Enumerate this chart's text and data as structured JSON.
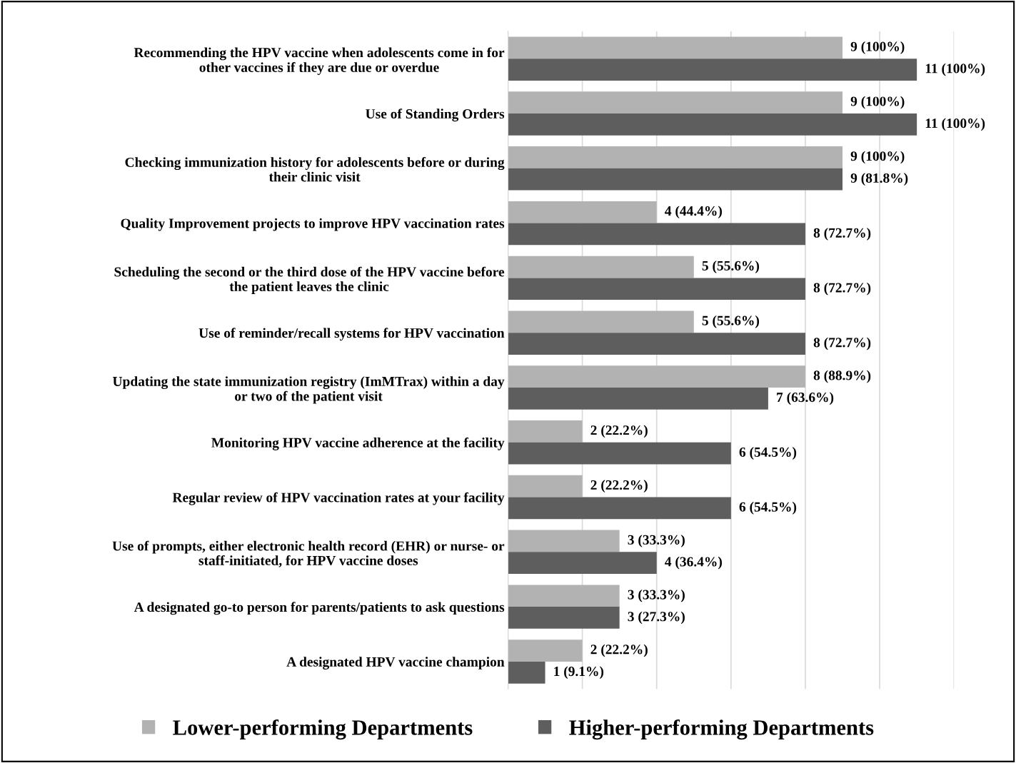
{
  "chart_data": {
    "type": "bar",
    "orientation": "horizontal",
    "categories": [
      "Recommending the HPV vaccine when adolescents come in for\nother vaccines if they are due or overdue",
      "Use of Standing Orders",
      "Checking immunization history for adolescents before or during\ntheir clinic visit",
      "Quality Improvement projects to improve HPV vaccination rates",
      "Scheduling the second or the third dose of the HPV vaccine before\nthe patient leaves the clinic",
      "Use of reminder/recall systems for HPV vaccination",
      "Updating the state immunization registry (ImMTrax) within a day\nor two of the patient visit",
      "Monitoring HPV vaccine adherence at the facility",
      "Regular review of HPV vaccination rates at your facility",
      "Use of prompts, either electronic health record (EHR) or nurse- or\nstaff-initiated, for HPV vaccine doses",
      "A designated go-to person for parents/patients to ask questions",
      "A designated HPV vaccine champion"
    ],
    "series": [
      {
        "name": "Lower-performing Departments",
        "color": "#b2b2b2",
        "values": [
          9,
          9,
          9,
          4,
          5,
          5,
          8,
          2,
          2,
          3,
          3,
          2
        ],
        "value_labels": [
          "9 (100%)",
          "9 (100%)",
          "9 (100%)",
          "4 (44.4%)",
          "5 (55.6%)",
          "5 (55.6%)",
          "8 (88.9%)",
          "2 (22.2%)",
          "2 (22.2%)",
          "3 (33.3%)",
          "3 (33.3%)",
          "2 (22.2%)"
        ]
      },
      {
        "name": "Higher-performing Departments",
        "color": "#5e5e5e",
        "values": [
          11,
          11,
          9,
          8,
          8,
          8,
          7,
          6,
          6,
          4,
          3,
          1
        ],
        "value_labels": [
          "11 (100%)",
          "11 (100%)",
          "9 (81.8%)",
          "8 (72.7%)",
          "8 (72.7%)",
          "8 (72.7%)",
          "7 (63.6%)",
          "6 (54.5%)",
          "6 (54.5%)",
          "4 (36.4%)",
          "3 (27.3%)",
          "1 (9.1%)"
        ]
      }
    ],
    "xlim": [
      0,
      12
    ],
    "xticks": [
      {
        "value": 0,
        "label": null
      },
      {
        "value": 2,
        "label": null
      },
      {
        "value": 4,
        "label": null
      },
      {
        "value": 6,
        "label": null
      },
      {
        "value": 8,
        "label": null
      },
      {
        "value": 10,
        "label": null
      },
      {
        "value": 12,
        "label": null
      }
    ],
    "grid": "x",
    "legend": "bottom",
    "tick_labels": "y"
  }
}
